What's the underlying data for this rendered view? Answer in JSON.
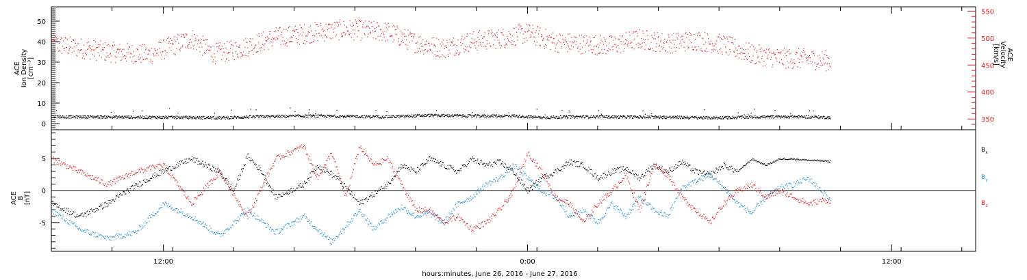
{
  "colors": {
    "density": "#000000",
    "velocity": "#e31a1c",
    "bx": "#000000",
    "by": "#1f8fd6",
    "bz": "#e31a1c"
  },
  "xaxis": {
    "label": "hours:minutes, June 26, 2016 - June 27, 2016",
    "range_hours": [
      -17.0,
      16.0
    ],
    "tick_labels": [
      {
        "hour": -13.0,
        "text": "12:00"
      },
      {
        "hour": -0.0,
        "text": "0:00"
      },
      {
        "hour": 13.0,
        "text": "12:00"
      }
    ],
    "minor_ticks_every_hours": 2.167
  },
  "chart_data": [
    {
      "type": "scatter",
      "panel": "plasma",
      "ylabel_left": [
        "ACE",
        "Ion Density",
        "[cm⁻³]"
      ],
      "ylabel_right": [
        "ACE",
        "Velocity",
        "[km/s]"
      ],
      "ylim_left": [
        -3,
        57
      ],
      "ylim_right": [
        330,
        558
      ],
      "yticks_left": [
        0,
        10,
        20,
        30,
        40,
        50
      ],
      "yticks_right": [
        350,
        400,
        450,
        500,
        550
      ],
      "series": [
        {
          "key": "density",
          "axis": "left",
          "x": [
            -15.5,
            -14.0,
            -12.5,
            -11.0,
            -9.5,
            -8.0,
            -6.5,
            -5.0,
            -3.5,
            -2.0,
            -0.5,
            0.5,
            2.0,
            3.5,
            5.0,
            6.5,
            8.0,
            9.5,
            10.8
          ],
          "values": [
            3.5,
            3.3,
            3.2,
            3.0,
            3.6,
            3.9,
            3.7,
            3.5,
            4.2,
            3.9,
            4.0,
            3.1,
            3.6,
            3.4,
            3.3,
            3.0,
            3.4,
            3.6,
            3.2
          ]
        },
        {
          "key": "velocity",
          "axis": "right",
          "x": [
            -17.0,
            -15.0,
            -13.5,
            -12.0,
            -11.2,
            -10.5,
            -9.0,
            -7.5,
            -6.5,
            -5.0,
            -4.0,
            -3.0,
            -2.0,
            -1.0,
            0.0,
            1.0,
            2.0,
            3.0,
            4.0,
            5.0,
            6.0,
            7.0,
            8.0,
            9.0,
            10.0,
            10.8
          ],
          "values": [
            490,
            475,
            470,
            500,
            472,
            478,
            502,
            512,
            517,
            512,
            492,
            482,
            495,
            500,
            510,
            493,
            490,
            487,
            499,
            491,
            497,
            488,
            471,
            463,
            462,
            458
          ]
        }
      ]
    },
    {
      "type": "scatter",
      "panel": "magnetic",
      "ylabel_left": [
        "ACE",
        "B",
        "[nT]"
      ],
      "ylim": [
        -9.5,
        9.5
      ],
      "yticks": [
        -5,
        0,
        5
      ],
      "zero_line": true,
      "legend": [
        "Bx",
        "By",
        "Bz"
      ],
      "series": [
        {
          "key": "bx",
          "name": "Bx",
          "x": [
            -17.0,
            -16.0,
            -15.0,
            -14.3,
            -13.5,
            -12.8,
            -12.0,
            -11.0,
            -10.5,
            -10.0,
            -9.5,
            -9.0,
            -8.0,
            -7.5,
            -6.8,
            -6.0,
            -5.0,
            -4.5,
            -4.0,
            -3.5,
            -3.0,
            -2.5,
            -2.0,
            -1.5,
            -1.0,
            -0.5,
            0.0,
            0.5,
            1.0,
            1.5,
            2.0,
            2.5,
            3.0,
            3.5,
            4.0,
            4.5,
            5.0,
            5.5,
            6.0,
            6.5,
            7.0,
            7.5,
            8.0,
            8.5,
            9.0,
            9.5,
            10.0,
            10.5,
            10.8
          ],
          "values": [
            -2.0,
            -4.0,
            -2.0,
            0.0,
            2.0,
            3.5,
            5.0,
            3.0,
            0.0,
            5.5,
            3.0,
            -1.0,
            1.0,
            4.0,
            2.0,
            -2.0,
            1.0,
            4.0,
            3.0,
            5.0,
            4.0,
            3.0,
            5.0,
            4.0,
            4.5,
            3.0,
            0.0,
            2.0,
            3.0,
            4.5,
            4.0,
            2.0,
            3.0,
            3.5,
            2.0,
            4.0,
            3.0,
            4.5,
            3.0,
            2.5,
            4.0,
            3.0,
            5.0,
            4.0,
            5.0,
            5.0,
            4.8,
            4.7,
            4.6
          ]
        },
        {
          "key": "by",
          "name": "By",
          "x": [
            -17.0,
            -16.0,
            -15.0,
            -14.0,
            -13.0,
            -12.0,
            -11.0,
            -10.0,
            -9.0,
            -8.0,
            -7.0,
            -6.0,
            -5.5,
            -5.0,
            -4.5,
            -4.0,
            -3.5,
            -3.0,
            -2.5,
            -2.0,
            -1.5,
            -1.0,
            -0.5,
            0.0,
            0.5,
            1.0,
            1.5,
            2.0,
            2.5,
            3.0,
            3.5,
            4.0,
            4.5,
            5.0,
            5.5,
            6.0,
            6.5,
            7.0,
            7.5,
            8.0,
            8.5,
            9.0,
            9.5,
            10.0,
            10.5,
            10.8
          ],
          "values": [
            -3.0,
            -6.0,
            -7.5,
            -6.5,
            -2.0,
            -4.0,
            -7.0,
            -3.0,
            -6.5,
            -4.0,
            -8.0,
            -3.0,
            -6.0,
            -4.0,
            -2.5,
            -4.0,
            -3.5,
            -5.0,
            -2.0,
            -1.0,
            1.0,
            2.0,
            4.0,
            2.0,
            0.0,
            -1.0,
            -4.0,
            -3.0,
            -5.0,
            -2.0,
            -4.0,
            -1.0,
            -3.0,
            -4.0,
            0.5,
            1.5,
            2.5,
            0.5,
            -2.0,
            -3.5,
            -1.0,
            0.5,
            1.0,
            2.0,
            0.0,
            -1.5
          ]
        },
        {
          "key": "bz",
          "name": "Bz",
          "x": [
            -17.0,
            -16.0,
            -15.0,
            -14.0,
            -13.0,
            -12.0,
            -11.0,
            -10.0,
            -9.0,
            -8.0,
            -7.5,
            -7.0,
            -6.5,
            -6.0,
            -5.5,
            -5.0,
            -4.5,
            -4.0,
            -3.5,
            -3.0,
            -2.5,
            -2.0,
            -1.5,
            -1.0,
            -0.5,
            0.0,
            0.5,
            1.0,
            1.5,
            2.0,
            2.5,
            3.0,
            3.5,
            4.0,
            4.5,
            5.0,
            5.5,
            6.0,
            6.5,
            7.0,
            7.5,
            8.0,
            8.5,
            9.0,
            9.5,
            10.0,
            10.5,
            10.8
          ],
          "values": [
            5.0,
            3.0,
            1.0,
            3.0,
            4.0,
            -2.0,
            3.0,
            -4.0,
            5.0,
            7.0,
            2.0,
            6.0,
            -1.0,
            7.0,
            4.0,
            5.0,
            1.0,
            -3.0,
            -3.0,
            -5.0,
            -4.0,
            -6.0,
            -5.0,
            -3.0,
            0.0,
            6.0,
            3.0,
            -1.0,
            -2.0,
            -5.0,
            -2.0,
            0.0,
            2.5,
            -3.0,
            4.0,
            2.5,
            -1.0,
            -3.0,
            -5.0,
            -2.0,
            0.0,
            1.0,
            -1.0,
            0.0,
            -1.0,
            -2.0,
            -1.5,
            -1.5
          ]
        }
      ]
    }
  ]
}
